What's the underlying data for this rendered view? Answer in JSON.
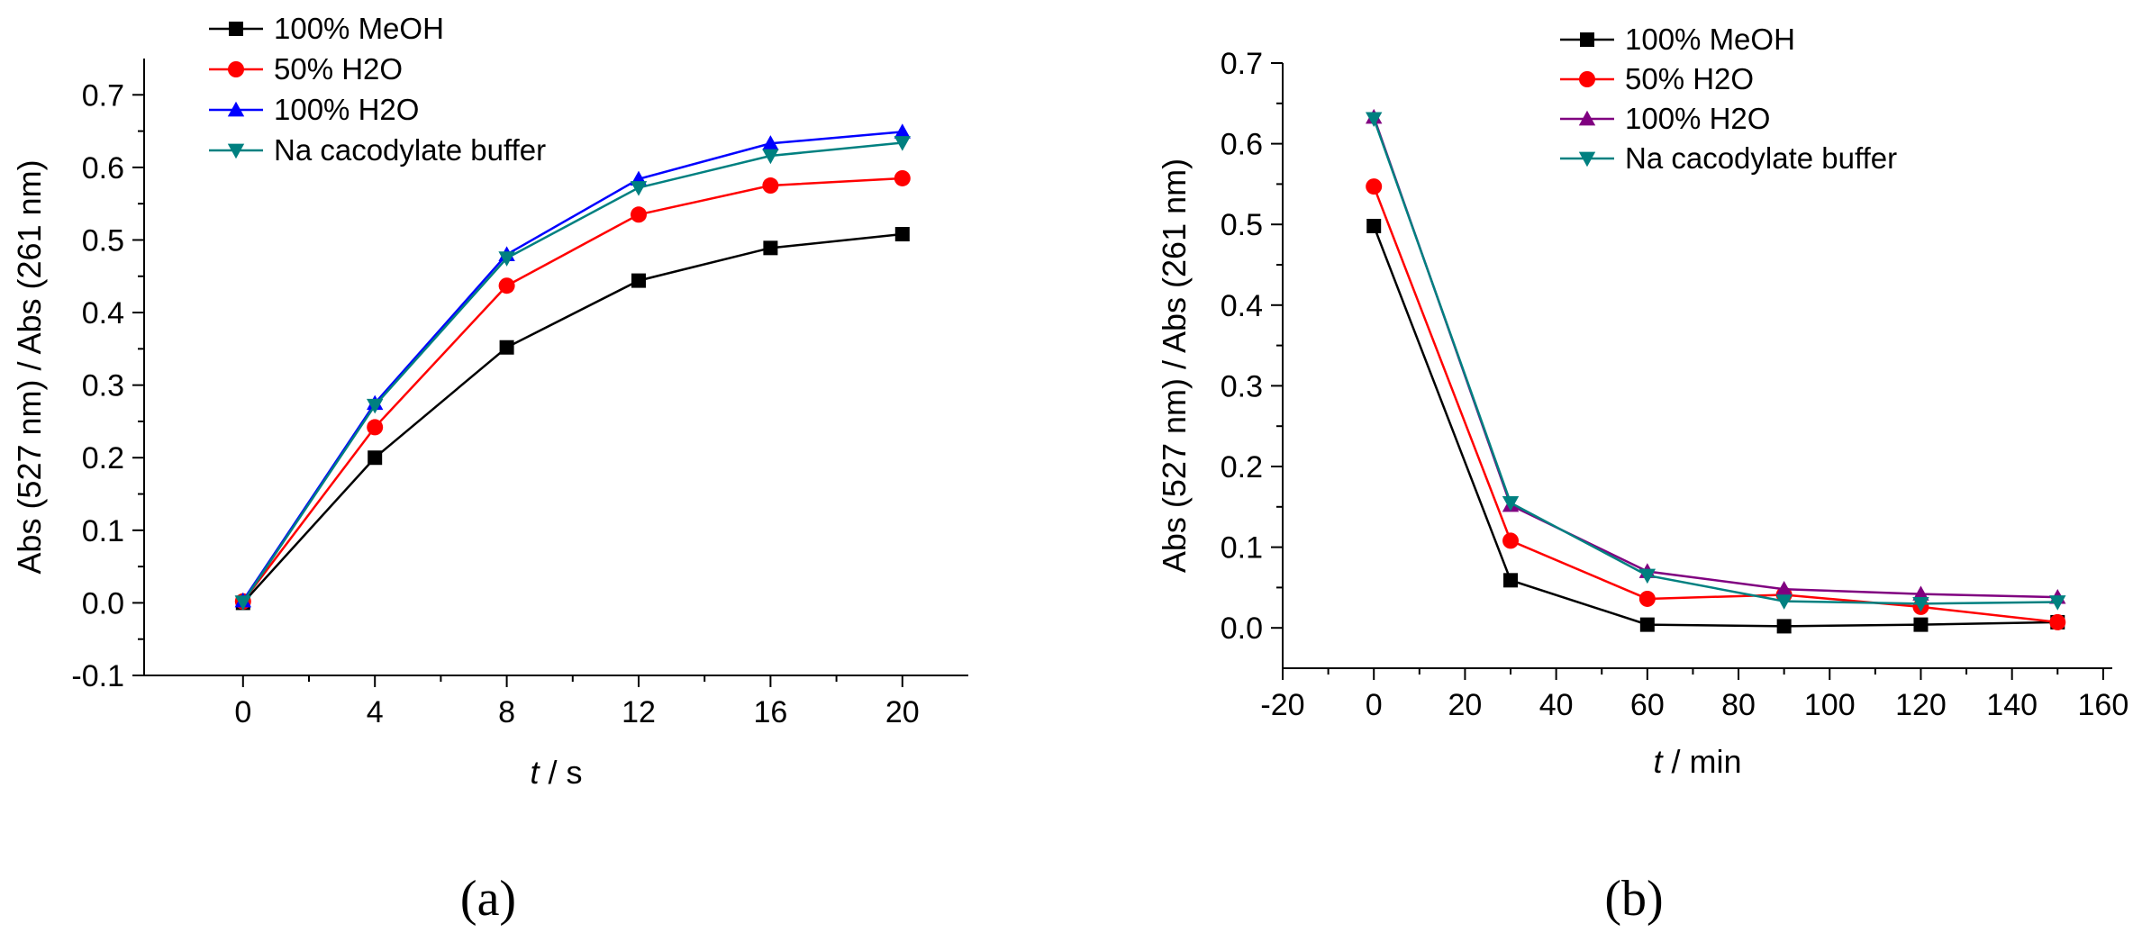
{
  "figure": {
    "panel_a": "(a)",
    "panel_b": "(b)"
  },
  "chart_data": [
    {
      "type": "line",
      "panel": "a",
      "xlabel_italic": "t",
      "xlabel_unit": " / s",
      "ylabel": "Abs (527 nm) / Abs (261 nm)",
      "xlim": [
        -3,
        22
      ],
      "ylim": [
        -0.1,
        0.75
      ],
      "xticks": [
        0,
        4,
        8,
        12,
        16,
        20
      ],
      "xtick_labels": [
        "0",
        "4",
        "8",
        "12",
        "16",
        "20"
      ],
      "yticks": [
        -0.1,
        0.0,
        0.1,
        0.2,
        0.3,
        0.4,
        0.5,
        0.6,
        0.7
      ],
      "ytick_labels": [
        "-0.1",
        "0.0",
        "0.1",
        "0.2",
        "0.3",
        "0.4",
        "0.5",
        "0.6",
        "0.7"
      ],
      "x": [
        0,
        4,
        8,
        12,
        16,
        20
      ],
      "legend_position": "top-left",
      "series": [
        {
          "name": "100% MeOH",
          "color": "#000000",
          "marker": "square",
          "values": [
            0.0,
            0.2,
            0.352,
            0.444,
            0.489,
            0.508
          ]
        },
        {
          "name": "50% H2O",
          "color": "#ff0000",
          "marker": "circle",
          "values": [
            0.002,
            0.242,
            0.437,
            0.535,
            0.575,
            0.585
          ]
        },
        {
          "name": "100% H2O",
          "color": "#0000ff",
          "marker": "triangle-up",
          "values": [
            0.003,
            0.275,
            0.48,
            0.584,
            0.633,
            0.649
          ]
        },
        {
          "name": "Na cacodylate buffer",
          "color": "#008080",
          "marker": "triangle-down",
          "values": [
            0.001,
            0.272,
            0.475,
            0.572,
            0.616,
            0.634
          ]
        }
      ]
    },
    {
      "type": "line",
      "panel": "b",
      "xlabel_italic": "t",
      "xlabel_unit": " / min",
      "ylabel": "Abs (527 nm) / Abs (261 nm)",
      "xlim": [
        -20,
        162
      ],
      "ylim": [
        -0.05,
        0.7
      ],
      "xticks": [
        -20,
        0,
        20,
        40,
        60,
        80,
        100,
        120,
        140,
        160
      ],
      "xtick_labels": [
        "-20",
        "0",
        "20",
        "40",
        "60",
        "80",
        "100",
        "120",
        "140",
        "160"
      ],
      "yticks": [
        0.0,
        0.1,
        0.2,
        0.3,
        0.4,
        0.5,
        0.6,
        0.7
      ],
      "ytick_labels": [
        "0.0",
        "0.1",
        "0.2",
        "0.3",
        "0.4",
        "0.5",
        "0.6",
        "0.7"
      ],
      "x": [
        0,
        30,
        60,
        90,
        120,
        150
      ],
      "legend_position": "top-right",
      "series": [
        {
          "name": "100% MeOH",
          "color": "#000000",
          "marker": "square",
          "values": [
            0.498,
            0.059,
            0.004,
            0.002,
            0.004,
            0.007
          ]
        },
        {
          "name": "50% H2O",
          "color": "#ff0000",
          "marker": "circle",
          "values": [
            0.547,
            0.108,
            0.036,
            0.041,
            0.026,
            0.007
          ]
        },
        {
          "name": "100% H2O",
          "color": "#800080",
          "marker": "triangle-up",
          "values": [
            0.633,
            0.152,
            0.07,
            0.048,
            0.042,
            0.038
          ]
        },
        {
          "name": "Na cacodylate buffer",
          "color": "#008080",
          "marker": "triangle-down",
          "values": [
            0.631,
            0.155,
            0.065,
            0.033,
            0.03,
            0.032
          ]
        }
      ]
    }
  ]
}
